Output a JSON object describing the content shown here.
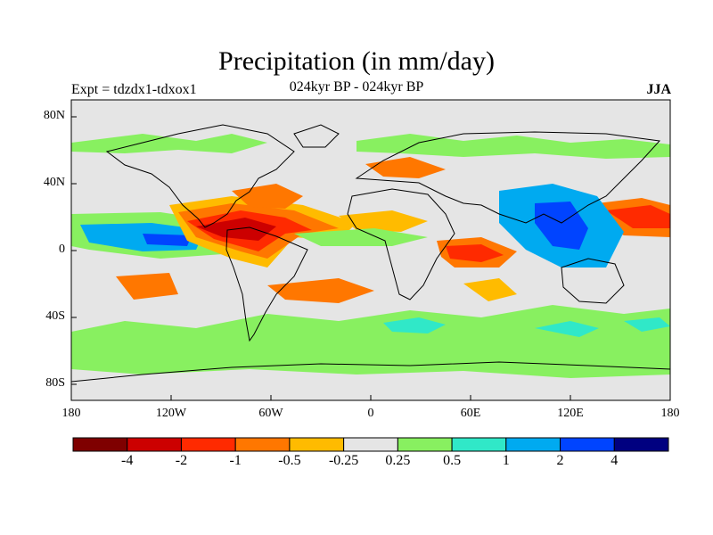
{
  "title": "Precipitation (in mm/day)",
  "subtitle_left": "Expt = tdzdx1-tdxox1",
  "subtitle_center": "024kyr BP - 024kyr BP",
  "subtitle_right": "JJA",
  "lat_labels": [
    "80N",
    "40N",
    "0",
    "40S",
    "80S"
  ],
  "lon_labels": [
    "180",
    "120W",
    "60W",
    "0",
    "60E",
    "120E",
    "180"
  ],
  "colorbar": {
    "colors": [
      "#7f0000",
      "#cc0000",
      "#ff2a00",
      "#ff7700",
      "#ffbb00",
      "#e5e5e5",
      "#88f060",
      "#30e8c8",
      "#00aaf0",
      "#0044ff",
      "#000080"
    ],
    "labels": [
      "-4",
      "-2",
      "-1",
      "-0.5",
      "-0.25",
      "0.25",
      "0.5",
      "1",
      "2",
      "4"
    ]
  }
}
